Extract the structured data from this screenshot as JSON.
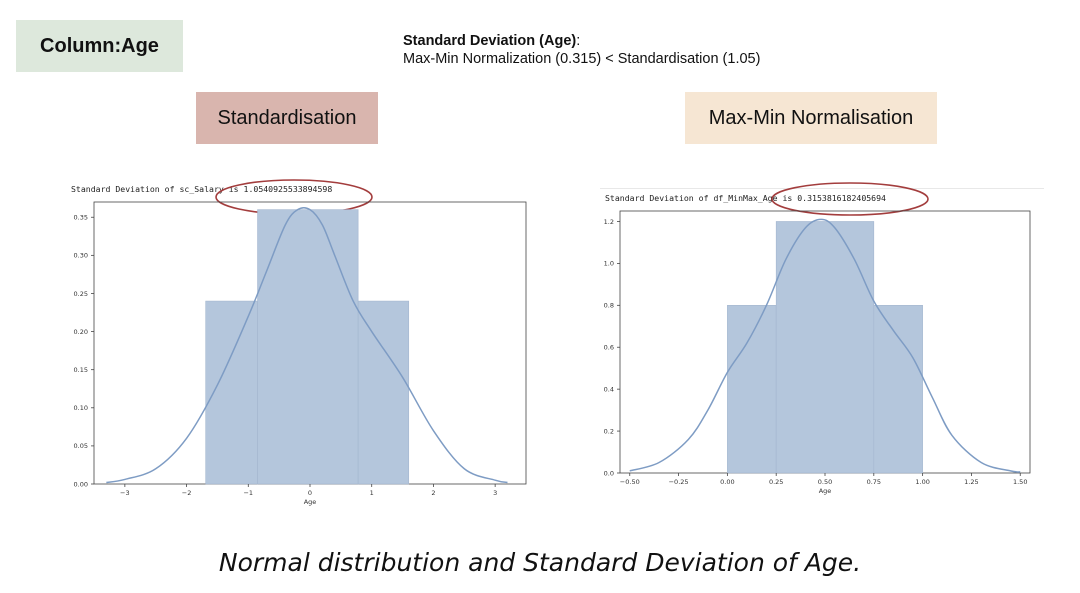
{
  "header": {
    "column_label": "Column:Age",
    "summary_title": "Standard Deviation (Age)",
    "summary_colon": ":",
    "summary_line": "Max-Min Normalization (0.315) < Standardisation (1.05)"
  },
  "panels": {
    "left_title": "Standardisation",
    "right_title": "Max-Min Normalisation",
    "left_output": "Standard Deviation of sc_Salary is 1.0540925533894598",
    "right_output": "Standard Deviation of df_MinMax_Age is 0.3153816182405694"
  },
  "caption": "Normal distribution and Standard Deviation of Age.",
  "colors": {
    "bar_fill": "#b4c6dc",
    "bar_stroke": "#a4b6cf",
    "kde_line": "#7e9cc4",
    "highlight_ellipse": "#a33d3d"
  },
  "chart_data": [
    {
      "type": "histogram",
      "xlabel": "Age",
      "ylabel": "",
      "title": "",
      "xlim": [
        -3.5,
        3.5
      ],
      "ylim": [
        0,
        0.37
      ],
      "xticks": [
        -3,
        -2,
        -1,
        0,
        1,
        2,
        3
      ],
      "xtick_labels": [
        "−3",
        "−2",
        "−1",
        "0",
        "1",
        "2",
        "3"
      ],
      "yticks": [
        0,
        0.05,
        0.1,
        0.15,
        0.2,
        0.25,
        0.3,
        0.35
      ],
      "ytick_labels": [
        "0.00",
        "0.05",
        "0.10",
        "0.15",
        "0.20",
        "0.25",
        "0.30",
        "0.35"
      ],
      "bins": [
        {
          "x0": -1.69,
          "x1": -0.85,
          "height": 0.24
        },
        {
          "x0": -0.85,
          "x1": 0.78,
          "height": 0.36
        },
        {
          "x0": 0.78,
          "x1": 1.6,
          "height": 0.24
        }
      ],
      "kde": {
        "x": [
          -3.3,
          -3.0,
          -2.5,
          -2.0,
          -1.5,
          -1.0,
          -0.7,
          -0.4,
          -0.2,
          0.0,
          0.2,
          0.4,
          0.7,
          1.0,
          1.5,
          2.0,
          2.5,
          3.0,
          3.2
        ],
        "y": [
          0.002,
          0.006,
          0.02,
          0.06,
          0.13,
          0.22,
          0.28,
          0.34,
          0.36,
          0.36,
          0.34,
          0.3,
          0.24,
          0.2,
          0.14,
          0.07,
          0.02,
          0.005,
          0.002
        ]
      }
    },
    {
      "type": "histogram",
      "xlabel": "Age",
      "ylabel": "",
      "title": "",
      "xlim": [
        -0.55,
        1.55
      ],
      "ylim": [
        0,
        1.25
      ],
      "xticks": [
        -0.5,
        -0.25,
        0,
        0.25,
        0.5,
        0.75,
        1.0,
        1.25,
        1.5
      ],
      "xtick_labels": [
        "−0.50",
        "−0.25",
        "0.00",
        "0.25",
        "0.50",
        "0.75",
        "1.00",
        "1.25",
        "1.50"
      ],
      "yticks": [
        0,
        0.2,
        0.4,
        0.6,
        0.8,
        1.0,
        1.2
      ],
      "ytick_labels": [
        "0.0",
        "0.2",
        "0.4",
        "0.6",
        "0.8",
        "1.0",
        "1.2"
      ],
      "bins": [
        {
          "x0": 0.0,
          "x1": 0.25,
          "height": 0.8
        },
        {
          "x0": 0.25,
          "x1": 0.75,
          "height": 1.2
        },
        {
          "x0": 0.75,
          "x1": 1.0,
          "height": 0.8
        }
      ],
      "kde": {
        "x": [
          -0.5,
          -0.35,
          -0.2,
          -0.1,
          0.0,
          0.1,
          0.2,
          0.3,
          0.4,
          0.48,
          0.55,
          0.65,
          0.75,
          0.85,
          0.95,
          1.05,
          1.15,
          1.3,
          1.45,
          1.5
        ],
        "y": [
          0.01,
          0.05,
          0.16,
          0.3,
          0.48,
          0.62,
          0.8,
          1.02,
          1.17,
          1.21,
          1.17,
          1.02,
          0.82,
          0.68,
          0.55,
          0.36,
          0.18,
          0.05,
          0.01,
          0.005
        ]
      }
    }
  ]
}
